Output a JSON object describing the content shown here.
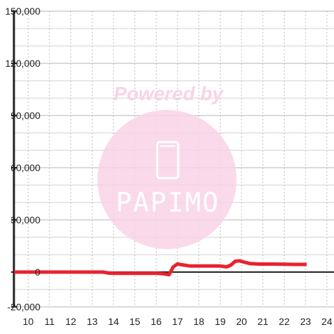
{
  "chart_data": {
    "type": "line",
    "title": "",
    "xlabel": "",
    "ylabel": "",
    "xlim": [
      9.333,
      24.333
    ],
    "ylim": [
      -20000,
      150000
    ],
    "grid": true,
    "x_ticks": [
      10,
      11,
      12,
      13,
      14,
      15,
      16,
      17,
      18,
      19,
      20,
      21,
      22,
      23,
      24
    ],
    "y_ticks": [
      -20000,
      0,
      30000,
      60000,
      90000,
      120000,
      150000
    ],
    "x_tick_labels": [
      "10",
      "11",
      "12",
      "13",
      "14",
      "15",
      "16",
      "17",
      "18",
      "19",
      "20",
      "21",
      "22",
      "23",
      "24"
    ],
    "y_tick_labels": [
      "-20,000",
      "0",
      "30,000",
      "60,000",
      "90,000",
      "120,000",
      "150,000"
    ],
    "series": [
      {
        "color": "#e8232f",
        "points": [
          [
            9.35,
            0
          ],
          [
            10,
            0
          ],
          [
            11,
            0
          ],
          [
            12,
            0
          ],
          [
            13,
            0
          ],
          [
            13.5,
            0
          ],
          [
            13.8,
            -600
          ],
          [
            14,
            -700
          ],
          [
            15,
            -700
          ],
          [
            16,
            -700
          ],
          [
            16.3,
            -900
          ],
          [
            16.6,
            -1500
          ],
          [
            16.8,
            3000
          ],
          [
            17.0,
            4700
          ],
          [
            17.2,
            4200
          ],
          [
            17.6,
            3500
          ],
          [
            18,
            3500
          ],
          [
            18.5,
            3500
          ],
          [
            19,
            3500
          ],
          [
            19.3,
            3000
          ],
          [
            19.5,
            4000
          ],
          [
            19.7,
            6200
          ],
          [
            19.9,
            6500
          ],
          [
            20.1,
            5800
          ],
          [
            20.4,
            4900
          ],
          [
            20.8,
            4600
          ],
          [
            21,
            4600
          ],
          [
            21.5,
            4600
          ],
          [
            22,
            4500
          ],
          [
            22.5,
            4400
          ],
          [
            23.05,
            4400
          ]
        ]
      }
    ]
  },
  "watermark": {
    "caption": "Powered by",
    "logo_text": "PAPIMO",
    "color": "#f9d3e6"
  }
}
